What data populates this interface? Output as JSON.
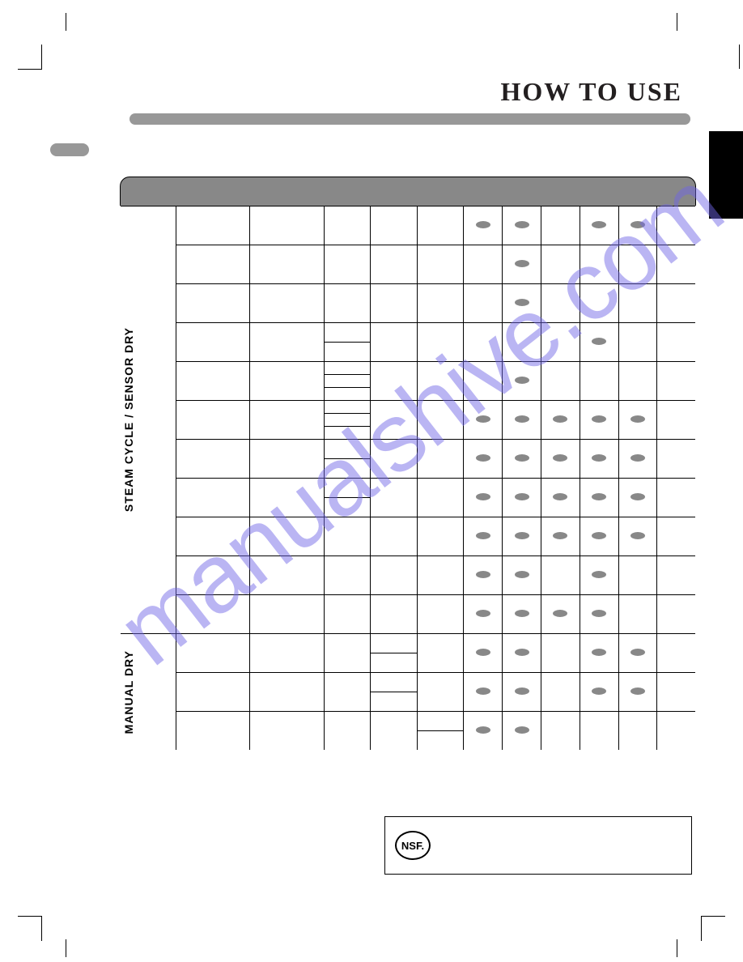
{
  "page_title": "HOW TO USE",
  "section_labels": {
    "steam_sensor": "STEAM CYCLE / SENSOR DRY",
    "manual": "MANUAL DRY"
  },
  "nsf": {
    "badge": "NSF."
  },
  "watermark": "manualshive.com",
  "colors": {
    "header_bar": "#989898",
    "dot": "#888888",
    "black": "#000000",
    "text": "#231f20"
  },
  "table": {
    "col_count": 12,
    "sections": [
      {
        "label_key": "section_labels.steam_sensor",
        "rows": [
          {
            "subcells_col4": 1,
            "dots": [
              7,
              8,
              10,
              11
            ]
          },
          {
            "subcells_col4": 1,
            "dots": [
              8
            ]
          },
          {
            "subcells_col4": 1,
            "dots": [
              8
            ]
          },
          {
            "subcells_col4": 2,
            "dots": [
              10
            ]
          },
          {
            "subcells_col4": 3,
            "dots": [
              8
            ]
          },
          {
            "subcells_col4": 3,
            "dots": [
              7,
              8,
              9,
              10,
              11
            ]
          },
          {
            "subcells_col4": 2,
            "dots": [
              7,
              8,
              9,
              10,
              11
            ]
          },
          {
            "subcells_col4": 2,
            "dots": [
              7,
              8,
              9,
              10,
              11
            ]
          },
          {
            "subcells_col4": 1,
            "dots": [
              7,
              8,
              9,
              10,
              11
            ]
          },
          {
            "subcells_col4": 1,
            "dots": [
              7,
              8,
              10
            ]
          },
          {
            "subcells_col4": 1,
            "dots": [
              7,
              8,
              9,
              10
            ]
          }
        ]
      },
      {
        "label_key": "section_labels.manual",
        "rows": [
          {
            "subcells_col5": 2,
            "dots": [
              7,
              8,
              10,
              11
            ]
          },
          {
            "subcells_col5": 2,
            "dots": [
              7,
              8,
              10,
              11
            ]
          },
          {
            "subcells_col6": 2,
            "dots": [
              7,
              8
            ]
          }
        ]
      }
    ]
  }
}
